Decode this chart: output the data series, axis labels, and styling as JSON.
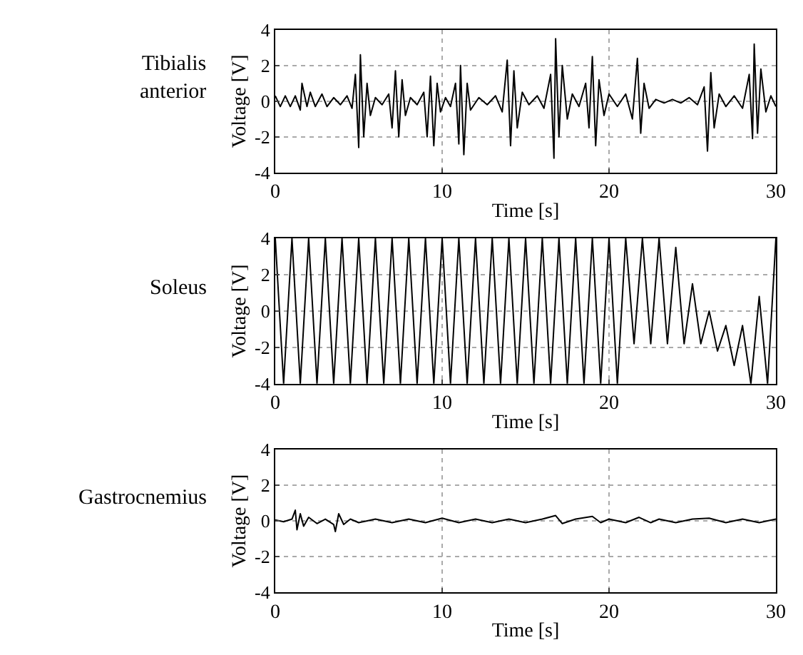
{
  "chart_data": [
    {
      "type": "line",
      "title": "Tibialis anterior",
      "xlabel": "Time [s]",
      "ylabel": "Voltage [V]",
      "xlim": [
        0,
        30
      ],
      "xticks": [
        0,
        10,
        20,
        30
      ],
      "ylim": [
        -4,
        4
      ],
      "yticks": [
        -4,
        -2,
        0,
        2,
        4
      ],
      "grid": true,
      "series": [
        {
          "color": "#000000",
          "x": [
            0,
            0.3,
            0.6,
            0.9,
            1.2,
            1.5,
            1.6,
            1.9,
            2.1,
            2.4,
            2.8,
            3.1,
            3.5,
            3.9,
            4.3,
            4.6,
            4.8,
            5.0,
            5.1,
            5.3,
            5.5,
            5.7,
            6.0,
            6.4,
            6.8,
            7.0,
            7.2,
            7.4,
            7.6,
            7.8,
            8.1,
            8.5,
            8.9,
            9.1,
            9.3,
            9.5,
            9.7,
            9.9,
            10.2,
            10.5,
            10.8,
            11.0,
            11.1,
            11.3,
            11.5,
            11.7,
            12.2,
            12.7,
            13.2,
            13.6,
            13.9,
            14.1,
            14.3,
            14.5,
            14.8,
            15.2,
            15.7,
            16.1,
            16.5,
            16.7,
            16.8,
            17.0,
            17.2,
            17.5,
            17.8,
            18.2,
            18.6,
            18.8,
            19.0,
            19.2,
            19.4,
            19.7,
            20.0,
            20.5,
            21.0,
            21.4,
            21.7,
            21.9,
            22.1,
            22.4,
            22.8,
            23.3,
            23.8,
            24.3,
            24.8,
            25.3,
            25.7,
            25.9,
            26.1,
            26.3,
            26.6,
            27.0,
            27.5,
            28.0,
            28.4,
            28.6,
            28.7,
            28.9,
            29.1,
            29.4,
            29.7,
            30
          ],
          "values": [
            0.3,
            -0.3,
            0.3,
            -0.3,
            0.3,
            -0.5,
            1.0,
            -0.3,
            0.5,
            -0.3,
            0.4,
            -0.3,
            0.2,
            -0.2,
            0.3,
            -0.4,
            1.5,
            -2.6,
            2.6,
            -2.0,
            1.0,
            -0.8,
            0.2,
            -0.2,
            0.4,
            -1.5,
            1.7,
            -2.0,
            1.2,
            -0.8,
            0.2,
            -0.2,
            0.5,
            -2.0,
            1.4,
            -2.5,
            1.0,
            -0.6,
            0.2,
            -0.3,
            1.0,
            -2.4,
            2.0,
            -3.0,
            1.0,
            -0.5,
            0.2,
            -0.2,
            0.3,
            -0.6,
            2.3,
            -2.5,
            1.7,
            -1.5,
            0.5,
            -0.2,
            0.3,
            -0.4,
            1.5,
            -3.2,
            3.5,
            -2.0,
            2.0,
            -1.0,
            0.4,
            -0.3,
            1.0,
            -1.5,
            2.5,
            -2.5,
            1.2,
            -0.8,
            0.4,
            -0.3,
            0.4,
            -1.0,
            2.4,
            -1.8,
            1.0,
            -0.4,
            0.1,
            -0.1,
            0.1,
            -0.1,
            0.2,
            -0.2,
            0.8,
            -2.8,
            1.6,
            -1.5,
            0.4,
            -0.3,
            0.3,
            -0.4,
            1.5,
            -2.1,
            3.2,
            -1.8,
            1.8,
            -0.6,
            0.3,
            -0.3
          ]
        }
      ]
    },
    {
      "type": "line",
      "title": "Soleus",
      "xlabel": "Time [s]",
      "ylabel": "Voltage [V]",
      "xlim": [
        0,
        30
      ],
      "xticks": [
        0,
        10,
        20,
        30
      ],
      "ylim": [
        -4,
        4
      ],
      "yticks": [
        -4,
        -2,
        0,
        2,
        4
      ],
      "grid": true,
      "series": [
        {
          "color": "#000000",
          "x": [
            0,
            0.5,
            1,
            1.5,
            2,
            2.5,
            3,
            3.5,
            4,
            4.5,
            5,
            5.5,
            6,
            6.5,
            7,
            7.5,
            8,
            8.5,
            9,
            9.5,
            10,
            10.5,
            11,
            11.5,
            12,
            12.5,
            13,
            13.5,
            14,
            14.5,
            15,
            15.5,
            16,
            16.5,
            17,
            17.5,
            18,
            18.5,
            19,
            19.5,
            20,
            20.5,
            21,
            21.5,
            22,
            22.5,
            23,
            23.5,
            24,
            24.5,
            25,
            25.5,
            26,
            26.5,
            27,
            27.5,
            28,
            28.5,
            29,
            29.5,
            30
          ],
          "values": [
            4,
            -4,
            4,
            -4,
            4,
            -4,
            4,
            -4,
            4,
            -4,
            4,
            -4,
            4,
            -4,
            4,
            -4,
            4,
            -4,
            4,
            -4,
            4,
            -4,
            4,
            -4,
            4,
            -4,
            4,
            -4,
            4,
            -4,
            4,
            -4,
            4,
            -4,
            4,
            -4,
            4,
            -4,
            4,
            -4,
            4,
            -4,
            4,
            -1.8,
            4,
            -1.8,
            4,
            -1.8,
            3.5,
            -1.8,
            1.5,
            -1.8,
            0,
            -2.2,
            -0.8,
            -3,
            -0.8,
            -4,
            0.8,
            -4,
            4
          ]
        }
      ]
    },
    {
      "type": "line",
      "title": "Gastrocnemius",
      "xlabel": "Time [s]",
      "ylabel": "Voltage [V]",
      "xlim": [
        0,
        30
      ],
      "xticks": [
        0,
        10,
        20,
        30
      ],
      "ylim": [
        -4,
        4
      ],
      "yticks": [
        -4,
        -2,
        0,
        2,
        4
      ],
      "grid": true,
      "series": [
        {
          "color": "#000000",
          "x": [
            0,
            0.5,
            1.0,
            1.2,
            1.3,
            1.5,
            1.7,
            2.0,
            2.5,
            3.0,
            3.5,
            3.6,
            3.8,
            4.1,
            4.5,
            5,
            6,
            7,
            8,
            9,
            10,
            11,
            12,
            13,
            14,
            15,
            16,
            16.8,
            17.2,
            18,
            19,
            19.5,
            20,
            21,
            21.8,
            22.5,
            23,
            24,
            25,
            26,
            27,
            28,
            29,
            30
          ],
          "values": [
            0.05,
            -0.05,
            0.1,
            0.6,
            -0.5,
            0.4,
            -0.3,
            0.2,
            -0.15,
            0.1,
            -0.2,
            -0.6,
            0.4,
            -0.2,
            0.1,
            -0.1,
            0.1,
            -0.1,
            0.1,
            -0.1,
            0.15,
            -0.1,
            0.1,
            -0.1,
            0.1,
            -0.1,
            0.1,
            0.3,
            -0.15,
            0.1,
            0.25,
            -0.1,
            0.1,
            -0.1,
            0.2,
            -0.1,
            0.1,
            -0.1,
            0.1,
            0.15,
            -0.1,
            0.1,
            -0.1,
            0.1
          ]
        }
      ]
    }
  ]
}
